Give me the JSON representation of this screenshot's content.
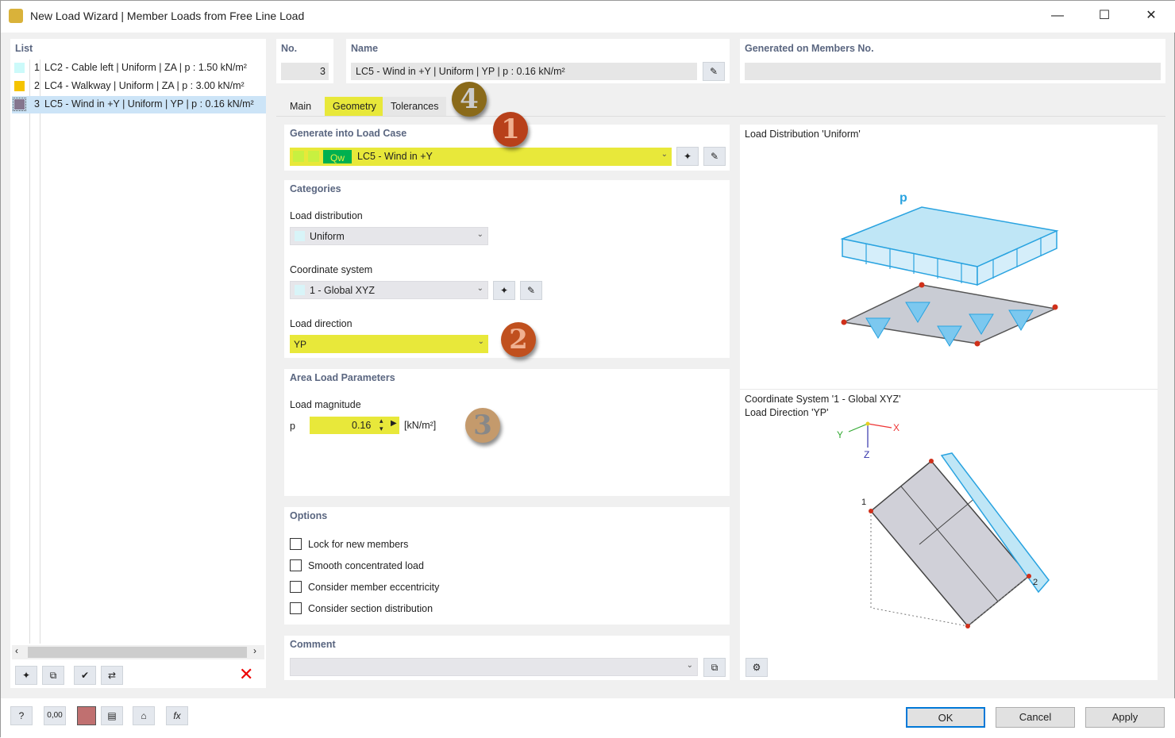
{
  "window": {
    "title": "New Load Wizard | Member Loads from Free Line Load",
    "minimize": "—",
    "maximize": "☐",
    "close": "✕"
  },
  "list": {
    "header": "List",
    "items": [
      {
        "no": "1",
        "text": "LC2 - Cable left | Uniform | ZA | p : 1.50 kN/m²",
        "color": "#ccfafa"
      },
      {
        "no": "2",
        "text": "LC4 - Walkway | Uniform | ZA | p : 3.00 kN/m²",
        "color": "#f5c400"
      },
      {
        "no": "3",
        "text": "LC5 - Wind in +Y | Uniform | YP | p : 0.16 kN/m²",
        "color": "#85768f"
      }
    ]
  },
  "header": {
    "no_label": "No.",
    "no_value": "3",
    "name_label": "Name",
    "name_value": "LC5 - Wind in +Y | Uniform | YP | p : 0.16 kN/m²",
    "generated_label": "Generated on Members No.",
    "generated_value": ""
  },
  "tabs": [
    {
      "label": "Main"
    },
    {
      "label": "Geometry"
    },
    {
      "label": "Tolerances"
    }
  ],
  "generate": {
    "header": "Generate into Load Case",
    "tag": "Qw",
    "value": "LC5 - Wind in +Y"
  },
  "categories": {
    "header": "Categories",
    "load_distribution_label": "Load distribution",
    "load_distribution": "Uniform",
    "coord_label": "Coordinate system",
    "coord": "1 - Global XYZ",
    "direction_label": "Load direction",
    "direction": "YP"
  },
  "area": {
    "header": "Area Load Parameters",
    "magnitude_label": "Load magnitude",
    "symbol": "p",
    "value": "0.16",
    "unit": "[kN/m²]"
  },
  "options": {
    "header": "Options",
    "items": [
      {
        "label": "Lock for new members",
        "checked": false
      },
      {
        "label": "Smooth concentrated load",
        "checked": false
      },
      {
        "label": "Consider member eccentricity",
        "checked": false
      },
      {
        "label": "Consider section distribution",
        "checked": false
      }
    ]
  },
  "comment": {
    "header": "Comment",
    "value": ""
  },
  "preview": {
    "dist_title": "Load Distribution 'Uniform'",
    "p_label": "p",
    "coord_title": "Coordinate System '1 - Global XYZ'",
    "dir_title": "Load Direction 'YP'",
    "axis_x": "X",
    "axis_y": "Y",
    "axis_z": "Z",
    "node1": "1",
    "node2": "2"
  },
  "annotations": [
    "1",
    "2",
    "3",
    "4"
  ],
  "buttons": {
    "ok": "OK",
    "cancel": "Cancel",
    "apply": "Apply",
    "units": "0,00"
  }
}
